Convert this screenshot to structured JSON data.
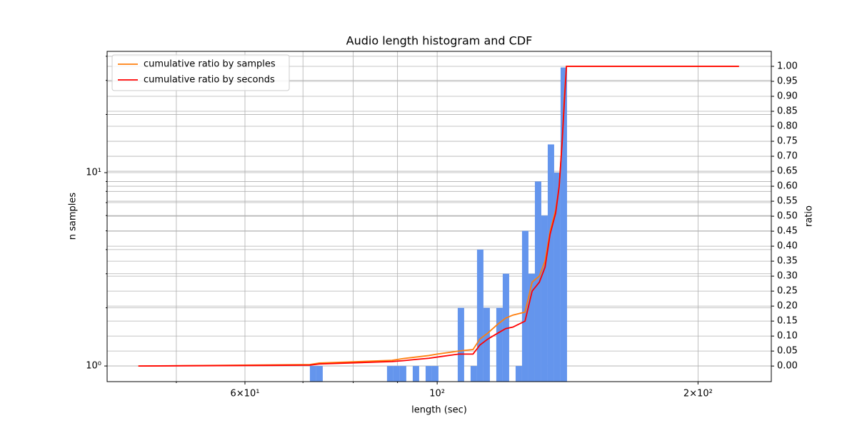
{
  "chart_data": {
    "type": "histogram",
    "title": "Audio length histogram and CDF",
    "xlabel": "length (sec)",
    "ylabel": "n samples",
    "y2label": "ratio",
    "xscale": "log",
    "yscale": "log",
    "grid": true,
    "legend": "upper left",
    "color": "#6495ed",
    "xlim": [
      41.6,
      243
    ],
    "ylim": [
      0.83,
      42.4
    ],
    "y2lim": [
      -0.052,
      1.05
    ],
    "xticks": [
      {
        "value": 60,
        "label": "6×10¹"
      },
      {
        "value": 100,
        "label": "10²"
      },
      {
        "value": 200,
        "label": "2×10²"
      }
    ],
    "xminorticks": [
      50,
      70,
      80,
      90
    ],
    "yticks": [
      {
        "value": 1,
        "label": "10⁰"
      },
      {
        "value": 10,
        "label": "10¹"
      }
    ],
    "yminorticks": [
      2,
      3,
      4,
      5,
      6,
      7,
      8,
      9,
      20,
      30,
      40
    ],
    "y2ticks": [
      {
        "value": 0,
        "label": "0.00"
      },
      {
        "value": 0.05,
        "label": "0.05"
      },
      {
        "value": 0.1,
        "label": "0.10"
      },
      {
        "value": 0.15,
        "label": "0.15"
      },
      {
        "value": 0.2,
        "label": "0.20"
      },
      {
        "value": 0.25,
        "label": "0.25"
      },
      {
        "value": 0.3,
        "label": "0.30"
      },
      {
        "value": 0.35,
        "label": "0.35"
      },
      {
        "value": 0.4,
        "label": "0.40"
      },
      {
        "value": 0.45,
        "label": "0.45"
      },
      {
        "value": 0.5,
        "label": "0.50"
      },
      {
        "value": 0.55,
        "label": "0.55"
      },
      {
        "value": 0.6,
        "label": "0.60"
      },
      {
        "value": 0.65,
        "label": "0.65"
      },
      {
        "value": 0.7,
        "label": "0.70"
      },
      {
        "value": 0.75,
        "label": "0.75"
      },
      {
        "value": 0.8,
        "label": "0.80"
      },
      {
        "value": 0.85,
        "label": "0.85"
      },
      {
        "value": 0.9,
        "label": "0.90"
      },
      {
        "value": 0.95,
        "label": "0.95"
      },
      {
        "value": 1,
        "label": "1.00"
      }
    ],
    "bins": [
      71.3,
      72.53,
      73.78,
      75.05,
      76.34,
      77.66,
      79.0,
      80.36,
      81.74,
      83.15,
      84.58,
      86.04,
      87.52,
      89.03,
      90.56,
      92.12,
      93.71,
      95.32,
      96.97,
      98.64,
      100.34,
      102.07,
      103.82,
      105.61,
      107.43,
      109.28,
      111.17,
      113.08,
      115.03,
      117.01,
      119.03,
      121.08,
      123.17,
      125.29,
      127.45,
      129.65,
      131.88,
      134.15,
      136.46,
      138.81,
      141.21
    ],
    "values": [
      1,
      1,
      0,
      0,
      0,
      0,
      0,
      0,
      0,
      0,
      0,
      0,
      1,
      1,
      1,
      0,
      1,
      0,
      1,
      1,
      0,
      0,
      0,
      2,
      0,
      1,
      4,
      2,
      0,
      2,
      3,
      0,
      1,
      5,
      3,
      9,
      6,
      14,
      10,
      35
    ],
    "series": [
      {
        "name": "cumulative ratio by samples",
        "color": "#ff7f0e",
        "axis": "y2",
        "x": [
          45.2,
          71.3,
          73.1,
          88.7,
          91.4,
          94.5,
          97.8,
          100,
          105.9,
          110,
          112,
          114.4,
          117.5,
          120,
          122.3,
          126.3,
          128.7,
          131.2,
          133.2,
          135,
          137.0,
          138.3,
          139.4,
          140.2,
          141.0,
          223
        ],
        "values": [
          0,
          0.005,
          0.01,
          0.019,
          0.025,
          0.03,
          0.035,
          0.04,
          0.05,
          0.055,
          0.09,
          0.11,
          0.14,
          0.16,
          0.17,
          0.18,
          0.28,
          0.3,
          0.35,
          0.45,
          0.52,
          0.6,
          0.75,
          0.9,
          1,
          1
        ]
      },
      {
        "name": "cumulative ratio by seconds",
        "color": "#ff0000",
        "axis": "y2",
        "x": [
          45.2,
          71.3,
          73.1,
          88.7,
          91.4,
          94.5,
          97.8,
          100,
          105.9,
          110,
          112,
          114.4,
          117.5,
          120,
          122.3,
          126.3,
          128.7,
          131.2,
          133.2,
          135,
          137.0,
          138.3,
          139.4,
          140.2,
          141.0,
          223
        ],
        "values": [
          0,
          0.003,
          0.007,
          0.015,
          0.018,
          0.022,
          0.026,
          0.03,
          0.04,
          0.04,
          0.07,
          0.09,
          0.11,
          0.125,
          0.13,
          0.15,
          0.25,
          0.28,
          0.33,
          0.44,
          0.51,
          0.6,
          0.75,
          0.88,
          1,
          1
        ]
      }
    ]
  }
}
